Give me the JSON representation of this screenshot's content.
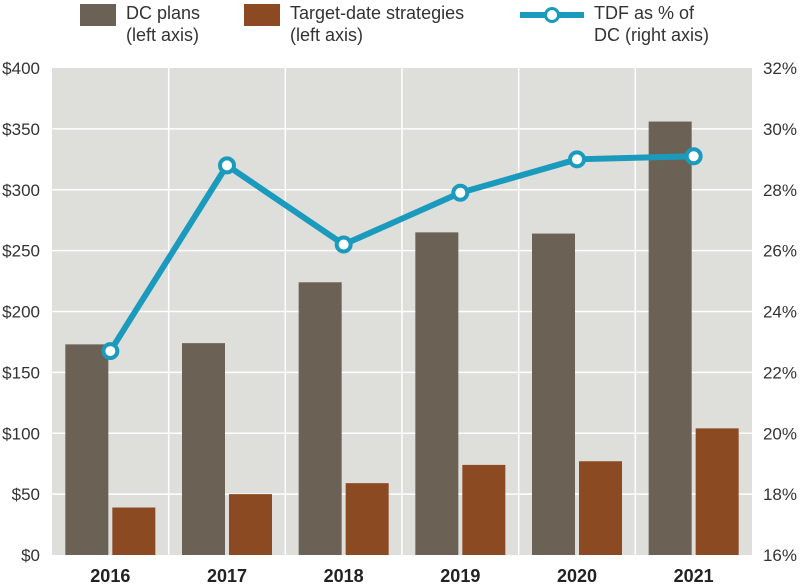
{
  "legend": {
    "dc_label": "DC plans\n(left axis)",
    "td_label": "Target-date strategies\n(left axis)",
    "tdf_label": "TDF as % of\nDC (right axis)"
  },
  "colors": {
    "dc": "#6b6155",
    "td": "#8b4a21",
    "tdf": "#1a9bbd",
    "plot_bg": "#dededb",
    "grid": "#ffffff"
  },
  "chart_data": {
    "type": "bar",
    "categories": [
      "2016",
      "2017",
      "2018",
      "2019",
      "2020",
      "2021"
    ],
    "series": [
      {
        "name": "DC plans (left axis)",
        "axis": "left",
        "values": [
          173,
          174,
          224,
          265,
          264,
          356
        ]
      },
      {
        "name": "Target-date strategies (left axis)",
        "axis": "left",
        "values": [
          39,
          50,
          59,
          74,
          77,
          104
        ]
      },
      {
        "name": "TDF as % of DC (right axis)",
        "axis": "right",
        "type": "line",
        "values": [
          22.7,
          28.8,
          26.2,
          27.9,
          29.0,
          29.1
        ]
      }
    ],
    "left_axis": {
      "ylim": [
        0,
        400
      ],
      "ticks": [
        "$0",
        "$50",
        "$100",
        "$150",
        "$200",
        "$250",
        "$300",
        "$350",
        "$400"
      ]
    },
    "right_axis": {
      "ylim": [
        16,
        32
      ],
      "ticks": [
        "16%",
        "18%",
        "20%",
        "22%",
        "24%",
        "26%",
        "28%",
        "30%",
        "32%"
      ]
    },
    "grid": true,
    "legend_position": "top"
  }
}
